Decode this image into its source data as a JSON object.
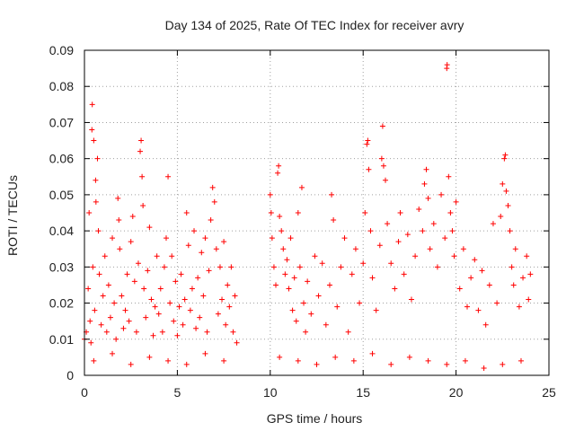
{
  "chart_data": {
    "type": "scatter",
    "title": "Day 134 of 2025, Rate Of TEC Index for receiver avry",
    "xlabel": "GPS time / hours",
    "ylabel": "ROTI / TECUs",
    "xlim": [
      0,
      25
    ],
    "ylim": [
      0,
      0.09
    ],
    "xticks": [
      0,
      5,
      10,
      15,
      20,
      25
    ],
    "xtick_labels": [
      "0",
      "5",
      "10",
      "15",
      "20",
      "25"
    ],
    "yticks": [
      0,
      0.01,
      0.02,
      0.03,
      0.04,
      0.05,
      0.06,
      0.07,
      0.08,
      0.09
    ],
    "ytick_labels": [
      "0",
      "0.01",
      "0.02",
      "0.03",
      "0.04",
      "0.05",
      "0.06",
      "0.07",
      "0.08",
      "0.09"
    ],
    "grid": true,
    "marker": "+",
    "color": "#ff0000",
    "series": [
      {
        "points": [
          [
            0.0,
            0.01
          ],
          [
            0.1,
            0.012
          ],
          [
            0.2,
            0.024
          ],
          [
            0.25,
            0.045
          ],
          [
            0.3,
            0.015
          ],
          [
            0.35,
            0.009
          ],
          [
            0.4,
            0.068
          ],
          [
            0.42,
            0.075
          ],
          [
            0.45,
            0.03
          ],
          [
            0.5,
            0.065
          ],
          [
            0.55,
            0.018
          ],
          [
            0.6,
            0.054
          ],
          [
            0.62,
            0.048
          ],
          [
            0.7,
            0.06
          ],
          [
            0.75,
            0.04
          ],
          [
            0.8,
            0.028
          ],
          [
            0.9,
            0.014
          ],
          [
            1.0,
            0.022
          ],
          [
            1.1,
            0.033
          ],
          [
            1.2,
            0.012
          ],
          [
            1.3,
            0.025
          ],
          [
            1.4,
            0.016
          ],
          [
            1.5,
            0.038
          ],
          [
            1.6,
            0.02
          ],
          [
            1.7,
            0.01
          ],
          [
            1.8,
            0.049
          ],
          [
            1.85,
            0.043
          ],
          [
            1.9,
            0.035
          ],
          [
            2.0,
            0.022
          ],
          [
            2.1,
            0.013
          ],
          [
            2.2,
            0.018
          ],
          [
            2.3,
            0.028
          ],
          [
            2.4,
            0.015
          ],
          [
            2.5,
            0.037
          ],
          [
            2.6,
            0.044
          ],
          [
            2.7,
            0.026
          ],
          [
            2.8,
            0.012
          ],
          [
            2.9,
            0.031
          ],
          [
            3.0,
            0.062
          ],
          [
            3.05,
            0.065
          ],
          [
            3.1,
            0.055
          ],
          [
            3.15,
            0.047
          ],
          [
            3.2,
            0.024
          ],
          [
            3.3,
            0.016
          ],
          [
            3.4,
            0.029
          ],
          [
            3.5,
            0.041
          ],
          [
            3.6,
            0.021
          ],
          [
            3.7,
            0.011
          ],
          [
            3.8,
            0.019
          ],
          [
            3.9,
            0.033
          ],
          [
            4.0,
            0.017
          ],
          [
            4.1,
            0.024
          ],
          [
            4.2,
            0.012
          ],
          [
            4.3,
            0.03
          ],
          [
            4.4,
            0.038
          ],
          [
            4.5,
            0.055
          ],
          [
            4.6,
            0.02
          ],
          [
            4.7,
            0.033
          ],
          [
            4.8,
            0.015
          ],
          [
            4.9,
            0.026
          ],
          [
            5.0,
            0.011
          ],
          [
            5.1,
            0.019
          ],
          [
            5.2,
            0.028
          ],
          [
            5.3,
            0.014
          ],
          [
            5.4,
            0.021
          ],
          [
            5.5,
            0.045
          ],
          [
            5.6,
            0.036
          ],
          [
            5.7,
            0.018
          ],
          [
            5.8,
            0.024
          ],
          [
            5.9,
            0.04
          ],
          [
            6.0,
            0.013
          ],
          [
            6.1,
            0.027
          ],
          [
            6.2,
            0.016
          ],
          [
            6.3,
            0.034
          ],
          [
            6.4,
            0.022
          ],
          [
            6.5,
            0.038
          ],
          [
            6.6,
            0.012
          ],
          [
            6.7,
            0.029
          ],
          [
            6.8,
            0.043
          ],
          [
            6.9,
            0.052
          ],
          [
            7.0,
            0.048
          ],
          [
            7.1,
            0.035
          ],
          [
            7.2,
            0.017
          ],
          [
            7.3,
            0.03
          ],
          [
            7.4,
            0.021
          ],
          [
            7.5,
            0.037
          ],
          [
            7.6,
            0.014
          ],
          [
            7.7,
            0.025
          ],
          [
            7.8,
            0.019
          ],
          [
            7.9,
            0.03
          ],
          [
            8.0,
            0.012
          ],
          [
            8.1,
            0.022
          ],
          [
            8.2,
            0.009
          ],
          [
            10.0,
            0.05
          ],
          [
            10.05,
            0.045
          ],
          [
            10.1,
            0.038
          ],
          [
            10.2,
            0.03
          ],
          [
            10.3,
            0.025
          ],
          [
            10.4,
            0.056
          ],
          [
            10.45,
            0.058
          ],
          [
            10.5,
            0.044
          ],
          [
            10.6,
            0.04
          ],
          [
            10.7,
            0.035
          ],
          [
            10.8,
            0.028
          ],
          [
            10.9,
            0.032
          ],
          [
            11.0,
            0.024
          ],
          [
            11.1,
            0.038
          ],
          [
            11.2,
            0.018
          ],
          [
            11.3,
            0.027
          ],
          [
            11.4,
            0.015
          ],
          [
            11.5,
            0.045
          ],
          [
            11.6,
            0.03
          ],
          [
            11.7,
            0.052
          ],
          [
            11.8,
            0.02
          ],
          [
            11.9,
            0.012
          ],
          [
            12.0,
            0.026
          ],
          [
            12.2,
            0.017
          ],
          [
            12.4,
            0.033
          ],
          [
            12.6,
            0.022
          ],
          [
            12.8,
            0.031
          ],
          [
            13.0,
            0.014
          ],
          [
            13.2,
            0.025
          ],
          [
            13.3,
            0.05
          ],
          [
            13.4,
            0.043
          ],
          [
            13.6,
            0.019
          ],
          [
            13.8,
            0.03
          ],
          [
            14.0,
            0.038
          ],
          [
            14.2,
            0.012
          ],
          [
            14.4,
            0.028
          ],
          [
            14.6,
            0.035
          ],
          [
            14.8,
            0.02
          ],
          [
            15.0,
            0.031
          ],
          [
            15.1,
            0.045
          ],
          [
            15.2,
            0.064
          ],
          [
            15.25,
            0.065
          ],
          [
            15.3,
            0.057
          ],
          [
            15.4,
            0.04
          ],
          [
            15.5,
            0.027
          ],
          [
            15.7,
            0.018
          ],
          [
            15.9,
            0.036
          ],
          [
            16.0,
            0.06
          ],
          [
            16.05,
            0.069
          ],
          [
            16.1,
            0.058
          ],
          [
            16.2,
            0.054
          ],
          [
            16.3,
            0.042
          ],
          [
            16.5,
            0.031
          ],
          [
            16.7,
            0.024
          ],
          [
            16.9,
            0.037
          ],
          [
            17.0,
            0.045
          ],
          [
            17.2,
            0.028
          ],
          [
            17.4,
            0.039
          ],
          [
            17.6,
            0.021
          ],
          [
            17.8,
            0.033
          ],
          [
            18.0,
            0.046
          ],
          [
            18.2,
            0.04
          ],
          [
            18.3,
            0.053
          ],
          [
            18.4,
            0.057
          ],
          [
            18.5,
            0.049
          ],
          [
            18.6,
            0.035
          ],
          [
            18.8,
            0.042
          ],
          [
            19.0,
            0.03
          ],
          [
            19.2,
            0.05
          ],
          [
            19.4,
            0.038
          ],
          [
            19.5,
            0.085
          ],
          [
            19.52,
            0.086
          ],
          [
            19.6,
            0.055
          ],
          [
            19.7,
            0.045
          ],
          [
            19.8,
            0.04
          ],
          [
            19.9,
            0.033
          ],
          [
            20.0,
            0.048
          ],
          [
            20.2,
            0.024
          ],
          [
            20.4,
            0.035
          ],
          [
            20.6,
            0.019
          ],
          [
            20.8,
            0.027
          ],
          [
            21.0,
            0.032
          ],
          [
            21.2,
            0.018
          ],
          [
            21.4,
            0.029
          ],
          [
            21.6,
            0.014
          ],
          [
            21.8,
            0.025
          ],
          [
            22.0,
            0.042
          ],
          [
            22.2,
            0.02
          ],
          [
            22.4,
            0.044
          ],
          [
            22.5,
            0.053
          ],
          [
            22.6,
            0.06
          ],
          [
            22.65,
            0.061
          ],
          [
            22.7,
            0.051
          ],
          [
            22.8,
            0.047
          ],
          [
            22.9,
            0.04
          ],
          [
            23.0,
            0.03
          ],
          [
            23.1,
            0.025
          ],
          [
            23.2,
            0.035
          ],
          [
            23.4,
            0.019
          ],
          [
            23.6,
            0.027
          ],
          [
            23.8,
            0.033
          ],
          [
            23.9,
            0.021
          ],
          [
            24.0,
            0.028
          ],
          [
            0.5,
            0.004
          ],
          [
            1.5,
            0.006
          ],
          [
            2.5,
            0.003
          ],
          [
            3.5,
            0.005
          ],
          [
            4.5,
            0.004
          ],
          [
            5.5,
            0.003
          ],
          [
            6.5,
            0.006
          ],
          [
            7.5,
            0.004
          ],
          [
            10.5,
            0.005
          ],
          [
            11.5,
            0.004
          ],
          [
            12.5,
            0.003
          ],
          [
            13.5,
            0.005
          ],
          [
            14.5,
            0.004
          ],
          [
            15.5,
            0.006
          ],
          [
            16.5,
            0.003
          ],
          [
            17.5,
            0.005
          ],
          [
            18.5,
            0.004
          ],
          [
            19.5,
            0.003
          ],
          [
            20.5,
            0.004
          ],
          [
            21.5,
            0.002
          ],
          [
            22.5,
            0.003
          ],
          [
            23.5,
            0.004
          ]
        ]
      }
    ]
  }
}
